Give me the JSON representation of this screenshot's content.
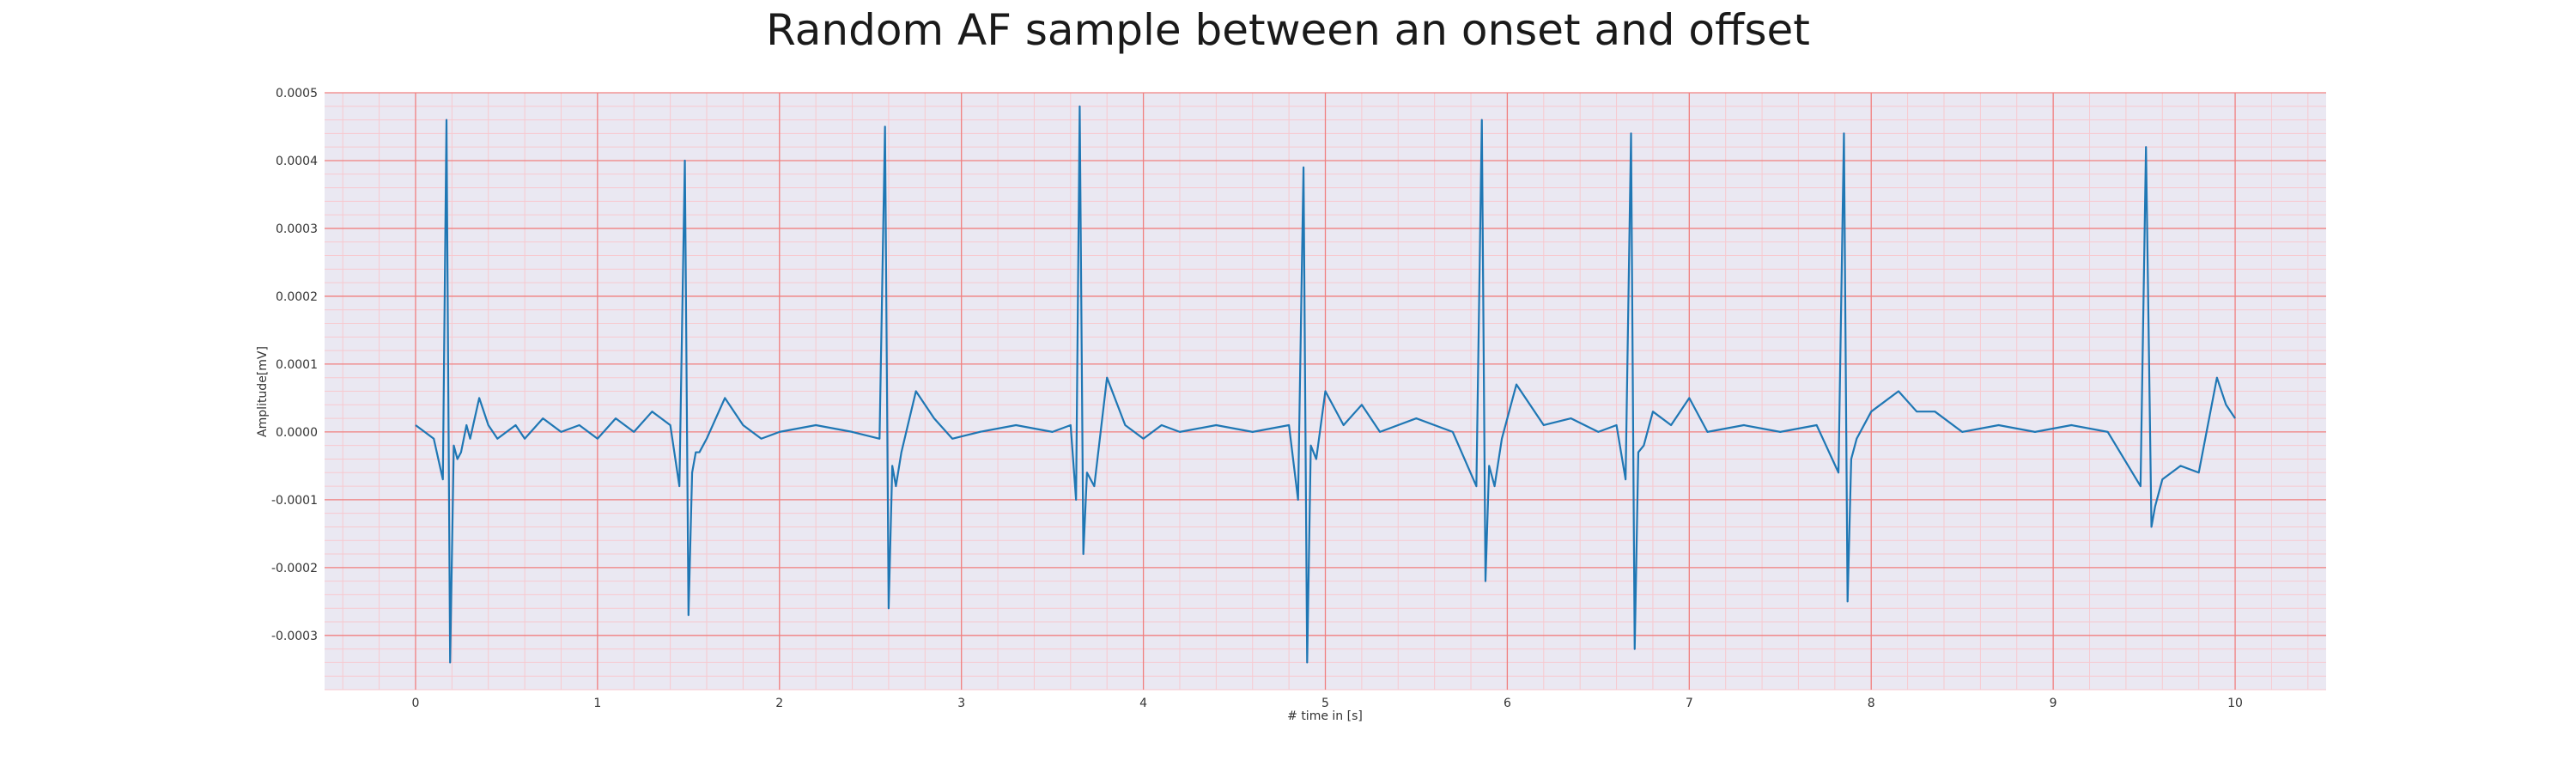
{
  "chart_data": {
    "type": "line",
    "title": "Random AF sample between an onset and offset",
    "xlabel": "# time in [s]",
    "ylabel": "Amplitude[mV]",
    "xlim": [
      -0.5,
      10.5
    ],
    "ylim": [
      -0.00038,
      0.0005
    ],
    "x_ticks": [
      0,
      1,
      2,
      3,
      4,
      5,
      6,
      7,
      8,
      9,
      10
    ],
    "x_tick_labels": [
      "0",
      "1",
      "2",
      "3",
      "4",
      "5",
      "6",
      "7",
      "8",
      "9",
      "10"
    ],
    "y_ticks": [
      0.0005,
      0.0004,
      0.0003,
      0.0002,
      0.0001,
      0.0,
      -0.0001,
      -0.0002,
      -0.0003
    ],
    "y_tick_labels": [
      "0.0005",
      "0.0004",
      "0.0003",
      "0.0002",
      "0.0001",
      "0.0000",
      "-0.0001",
      "-0.0002",
      "-0.0003"
    ],
    "grid": true,
    "grid_color_major": "#f08080",
    "grid_color_minor": "#f7c9cf",
    "background_color": "#eae8f2",
    "line_color": "#1f77b4",
    "series": [
      {
        "x": [
          0.0,
          0.05,
          0.1,
          0.15,
          0.17,
          0.19,
          0.21,
          0.23,
          0.25,
          0.28,
          0.3,
          0.35,
          0.4,
          0.45,
          0.5,
          0.55,
          0.6,
          0.7,
          0.8,
          0.9,
          1.0,
          1.1,
          1.2,
          1.3,
          1.4,
          1.45,
          1.48,
          1.5,
          1.52,
          1.54,
          1.56,
          1.6,
          1.7,
          1.8,
          1.9,
          2.0,
          2.2,
          2.4,
          2.55,
          2.58,
          2.6,
          2.62,
          2.64,
          2.67,
          2.75,
          2.85,
          2.95,
          3.1,
          3.3,
          3.5,
          3.6,
          3.63,
          3.65,
          3.67,
          3.69,
          3.73,
          3.8,
          3.9,
          4.0,
          4.1,
          4.2,
          4.4,
          4.6,
          4.8,
          4.85,
          4.88,
          4.9,
          4.92,
          4.95,
          5.0,
          5.1,
          5.2,
          5.3,
          5.5,
          5.7,
          5.83,
          5.86,
          5.88,
          5.9,
          5.93,
          5.97,
          6.05,
          6.2,
          6.35,
          6.5,
          6.6,
          6.65,
          6.68,
          6.7,
          6.72,
          6.75,
          6.8,
          6.9,
          7.0,
          7.1,
          7.3,
          7.5,
          7.7,
          7.82,
          7.85,
          7.87,
          7.89,
          7.92,
          8.0,
          8.15,
          8.25,
          8.35,
          8.5,
          8.7,
          8.9,
          9.1,
          9.3,
          9.48,
          9.51,
          9.54,
          9.56,
          9.6,
          9.7,
          9.8,
          9.9,
          9.95,
          10.0
        ],
        "y": [
          1e-05,
          0.0,
          -1e-05,
          -7e-05,
          0.00046,
          -0.00034,
          -2e-05,
          -4e-05,
          -3e-05,
          1e-05,
          -1e-05,
          5e-05,
          1e-05,
          -1e-05,
          0.0,
          1e-05,
          -1e-05,
          2e-05,
          0.0,
          1e-05,
          -1e-05,
          2e-05,
          0.0,
          3e-05,
          1e-05,
          -8e-05,
          0.0004,
          -0.00027,
          -6e-05,
          -3e-05,
          -3e-05,
          -1e-05,
          5e-05,
          1e-05,
          -1e-05,
          0.0,
          1e-05,
          0.0,
          -1e-05,
          0.00045,
          -0.00026,
          -5e-05,
          -8e-05,
          -3e-05,
          6e-05,
          2e-05,
          -1e-05,
          0.0,
          1e-05,
          0.0,
          1e-05,
          -0.0001,
          0.00048,
          -0.00018,
          -6e-05,
          -8e-05,
          8e-05,
          1e-05,
          -1e-05,
          1e-05,
          0.0,
          1e-05,
          0.0,
          1e-05,
          -0.0001,
          0.00039,
          -0.00034,
          -2e-05,
          -4e-05,
          6e-05,
          1e-05,
          4e-05,
          0.0,
          2e-05,
          0.0,
          -8e-05,
          0.00046,
          -0.00022,
          -5e-05,
          -8e-05,
          -1e-05,
          7e-05,
          1e-05,
          2e-05,
          0.0,
          1e-05,
          -7e-05,
          0.00044,
          -0.00032,
          -3e-05,
          -2e-05,
          3e-05,
          1e-05,
          5e-05,
          0.0,
          1e-05,
          0.0,
          1e-05,
          -6e-05,
          0.00044,
          -0.00025,
          -4e-05,
          -1e-05,
          3e-05,
          6e-05,
          3e-05,
          3e-05,
          0.0,
          1e-05,
          0.0,
          1e-05,
          0.0,
          -8e-05,
          0.00042,
          -0.00014,
          -0.00011,
          -7e-05,
          -5e-05,
          -6e-05,
          8e-05,
          4e-05,
          2e-05
        ]
      }
    ]
  }
}
